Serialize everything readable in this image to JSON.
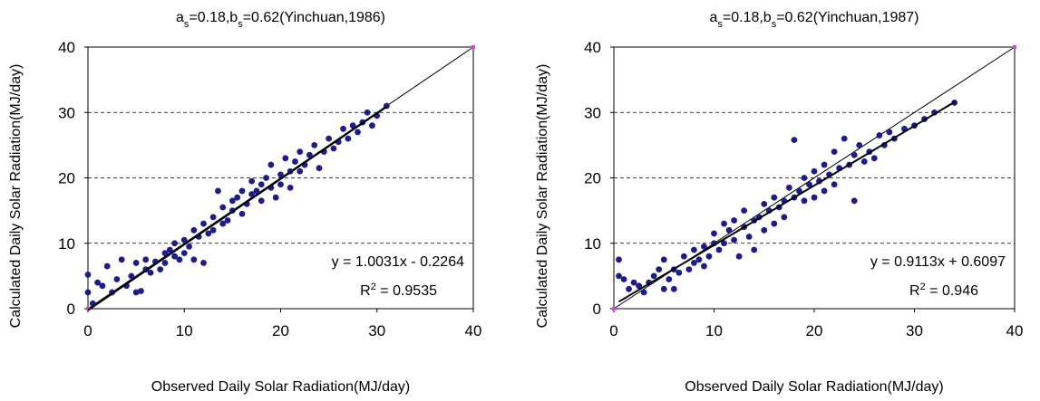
{
  "chart_data": [
    {
      "type": "scatter",
      "title": [
        "a",
        "s",
        "=0.18,b",
        "s",
        "=0.62(Yinchuan,1986)"
      ],
      "x_label": "Observed Daily Solar Radiation(MJ/day)",
      "y_label": "Calculated Daily Solar Radiation(MJ/day)",
      "equation": "y = 1.0031x - 0.2264",
      "r_squared": [
        "R",
        "2",
        " = 0.9535"
      ],
      "fit": {
        "slope": 1.0031,
        "intercept": -0.2264
      },
      "color": "#1c1c8a",
      "grid": "y",
      "xlim": [
        0,
        40
      ],
      "ylim": [
        0,
        40
      ],
      "xticks": [
        0,
        10,
        20,
        30,
        40
      ],
      "yticks": [
        0,
        10,
        20,
        30,
        40
      ],
      "x": [
        0,
        0,
        0.5,
        1,
        1.5,
        2,
        2.5,
        3,
        3.5,
        4,
        4.5,
        5,
        5,
        5.5,
        6,
        6,
        6.5,
        7,
        7.5,
        8,
        8,
        8.5,
        9,
        9,
        9.5,
        10,
        10,
        10.5,
        11,
        11,
        11.5,
        12,
        12,
        12.5,
        13,
        13,
        13.5,
        14,
        14,
        14.5,
        15,
        15,
        15.5,
        16,
        16,
        16.5,
        17,
        17,
        17.5,
        18,
        18,
        18.5,
        19,
        19,
        19.5,
        20,
        20,
        20.5,
        21,
        21,
        21.5,
        22,
        22,
        22.5,
        23,
        23.5,
        24,
        24.5,
        25,
        25.5,
        26,
        26.5,
        27,
        27.5,
        28,
        28.5,
        29,
        29.5,
        30,
        31
      ],
      "values": [
        5.2,
        2.5,
        0.8,
        4,
        3.5,
        6.5,
        2.5,
        4.5,
        7.5,
        3.5,
        5,
        2.5,
        7,
        2.7,
        6,
        7.5,
        5.5,
        7.2,
        6,
        8.5,
        7,
        9,
        8,
        10,
        7.5,
        10.5,
        8.5,
        9.5,
        12,
        7.5,
        11,
        13,
        7,
        11.5,
        14,
        12,
        18,
        13,
        15.5,
        13.5,
        15,
        16.5,
        17,
        14.5,
        18,
        16,
        17.5,
        19.5,
        18,
        19,
        16.5,
        20,
        18.5,
        22,
        17,
        20.5,
        19,
        23,
        21,
        18.5,
        22.5,
        21,
        24,
        22,
        23.5,
        25,
        21.5,
        24,
        26,
        24.5,
        25.5,
        27.5,
        26,
        28,
        27,
        28.5,
        30,
        28,
        29.5,
        31
      ]
    },
    {
      "type": "scatter",
      "title": [
        "a",
        "s",
        "=0.18,b",
        "s",
        "=0.62(Yinchuan,1987)"
      ],
      "x_label": "Observed Daily Solar Radiation(MJ/day)",
      "y_label": "Calculated Daily Solar Radiation(MJ/day)",
      "equation": "y = 0.9113x + 0.6097",
      "r_squared": [
        "R",
        "2",
        " = 0.946"
      ],
      "fit": {
        "slope": 0.9113,
        "intercept": 0.6097
      },
      "color": "#1c1c8a",
      "grid": "y",
      "xlim": [
        0,
        40
      ],
      "ylim": [
        0,
        40
      ],
      "xticks": [
        0,
        10,
        20,
        30,
        40
      ],
      "yticks": [
        0,
        10,
        20,
        30,
        40
      ],
      "x": [
        0.5,
        0.5,
        1,
        1.5,
        2,
        2.5,
        3,
        3.5,
        4,
        4.5,
        5,
        5,
        5.5,
        6,
        6,
        6.5,
        7,
        7.5,
        8,
        8,
        8.5,
        9,
        9,
        9.5,
        10,
        10,
        10.5,
        11,
        11,
        11.5,
        12,
        12,
        12.5,
        13,
        13,
        13.5,
        14,
        14,
        14.5,
        15,
        15,
        15.5,
        16,
        16,
        16.5,
        17,
        17,
        17.5,
        18,
        18,
        18.5,
        19,
        19,
        19.5,
        20,
        20,
        20.5,
        21,
        21,
        21.5,
        22,
        22,
        22.5,
        23,
        23.5,
        24,
        24,
        24.5,
        25,
        25.5,
        26,
        26.5,
        27,
        27.5,
        28,
        29,
        30,
        31,
        32,
        34
      ],
      "values": [
        7.5,
        5,
        4.5,
        3,
        4,
        3.5,
        2.5,
        4,
        5,
        6,
        3,
        7.5,
        4.5,
        3,
        6,
        5.5,
        8,
        6,
        7,
        9,
        7.5,
        9.5,
        6.5,
        8,
        10,
        11.5,
        9,
        13,
        10,
        12,
        10.5,
        13.5,
        8,
        12.5,
        15,
        11,
        13.5,
        9,
        14,
        16,
        12,
        15,
        17,
        13,
        15.5,
        16.5,
        14,
        18.5,
        17,
        25.8,
        18,
        20,
        16.5,
        19,
        21,
        17,
        19.5,
        22,
        18,
        20.5,
        24,
        19,
        21.5,
        26,
        22,
        16.5,
        23.5,
        25,
        22.5,
        24,
        23,
        26.5,
        25,
        27,
        26,
        27.5,
        28,
        29,
        30,
        31.5
      ]
    }
  ]
}
